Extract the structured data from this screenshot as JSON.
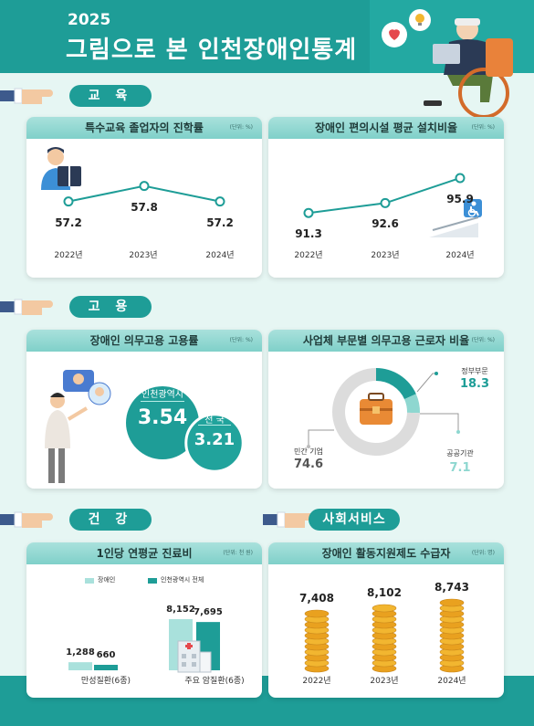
{
  "header": {
    "year": "2025",
    "title": "그림으로 본 인천장애인통계"
  },
  "sections": {
    "education": "교 육",
    "employment": "고 용",
    "health": "건 강",
    "social": "사회서비스"
  },
  "colors": {
    "teal": "#1e9d97",
    "light_teal": "#7fd0c9",
    "gold": "#f2b630"
  },
  "chart_data": [
    {
      "type": "line",
      "title": "특수교육 졸업자의 진학률",
      "unit": "(단위: %)",
      "categories": [
        "2022년",
        "2023년",
        "2024년"
      ],
      "values": [
        57.2,
        57.8,
        57.2
      ],
      "value_labels": [
        "57.2",
        "57.8",
        "57.2"
      ]
    },
    {
      "type": "line",
      "title": "장애인 편의시설 평균 설치비율",
      "unit": "(단위: %)",
      "categories": [
        "2022년",
        "2023년",
        "2024년"
      ],
      "values": [
        91.3,
        92.6,
        95.9
      ],
      "value_labels": [
        "91.3",
        "92.6",
        "95.9"
      ]
    },
    {
      "type": "bubble",
      "title": "장애인 의무고용 고용률",
      "unit": "(단위: %)",
      "items": [
        {
          "label": "인천광역시",
          "value": 3.54,
          "value_label": "3.54"
        },
        {
          "label": "전 국",
          "value": 3.21,
          "value_label": "3.21"
        }
      ]
    },
    {
      "type": "pie",
      "title": "사업체 부문별 의무고용 근로자 비율",
      "unit": "(단위: %)",
      "slices": [
        {
          "label": "정부부문",
          "value": 18.3,
          "value_label": "18.3"
        },
        {
          "label": "공공기관",
          "value": 7.1,
          "value_label": "7.1"
        },
        {
          "label": "민간 기업",
          "value": 74.6,
          "value_label": "74.6"
        }
      ]
    },
    {
      "type": "bar",
      "title": "1인당 연평균 진료비",
      "unit": "(단위: 천 원)",
      "legend": [
        "장애인",
        "인천광역시 전체"
      ],
      "categories": [
        "만성질환(6종)",
        "주요 암질환(6종)"
      ],
      "series": [
        {
          "name": "장애인",
          "values": [
            1288,
            8152
          ],
          "labels": [
            "1,288",
            "8,152"
          ]
        },
        {
          "name": "인천광역시 전체",
          "values": [
            660,
            7695
          ],
          "labels": [
            "660",
            "7,695"
          ]
        }
      ]
    },
    {
      "type": "bar",
      "title": "장애인 활동지원제도 수급자",
      "unit": "(단위: 명)",
      "categories": [
        "2022년",
        "2023년",
        "2024년"
      ],
      "values": [
        7408,
        8102,
        8743
      ],
      "value_labels": [
        "7,408",
        "8,102",
        "8,743"
      ]
    }
  ]
}
